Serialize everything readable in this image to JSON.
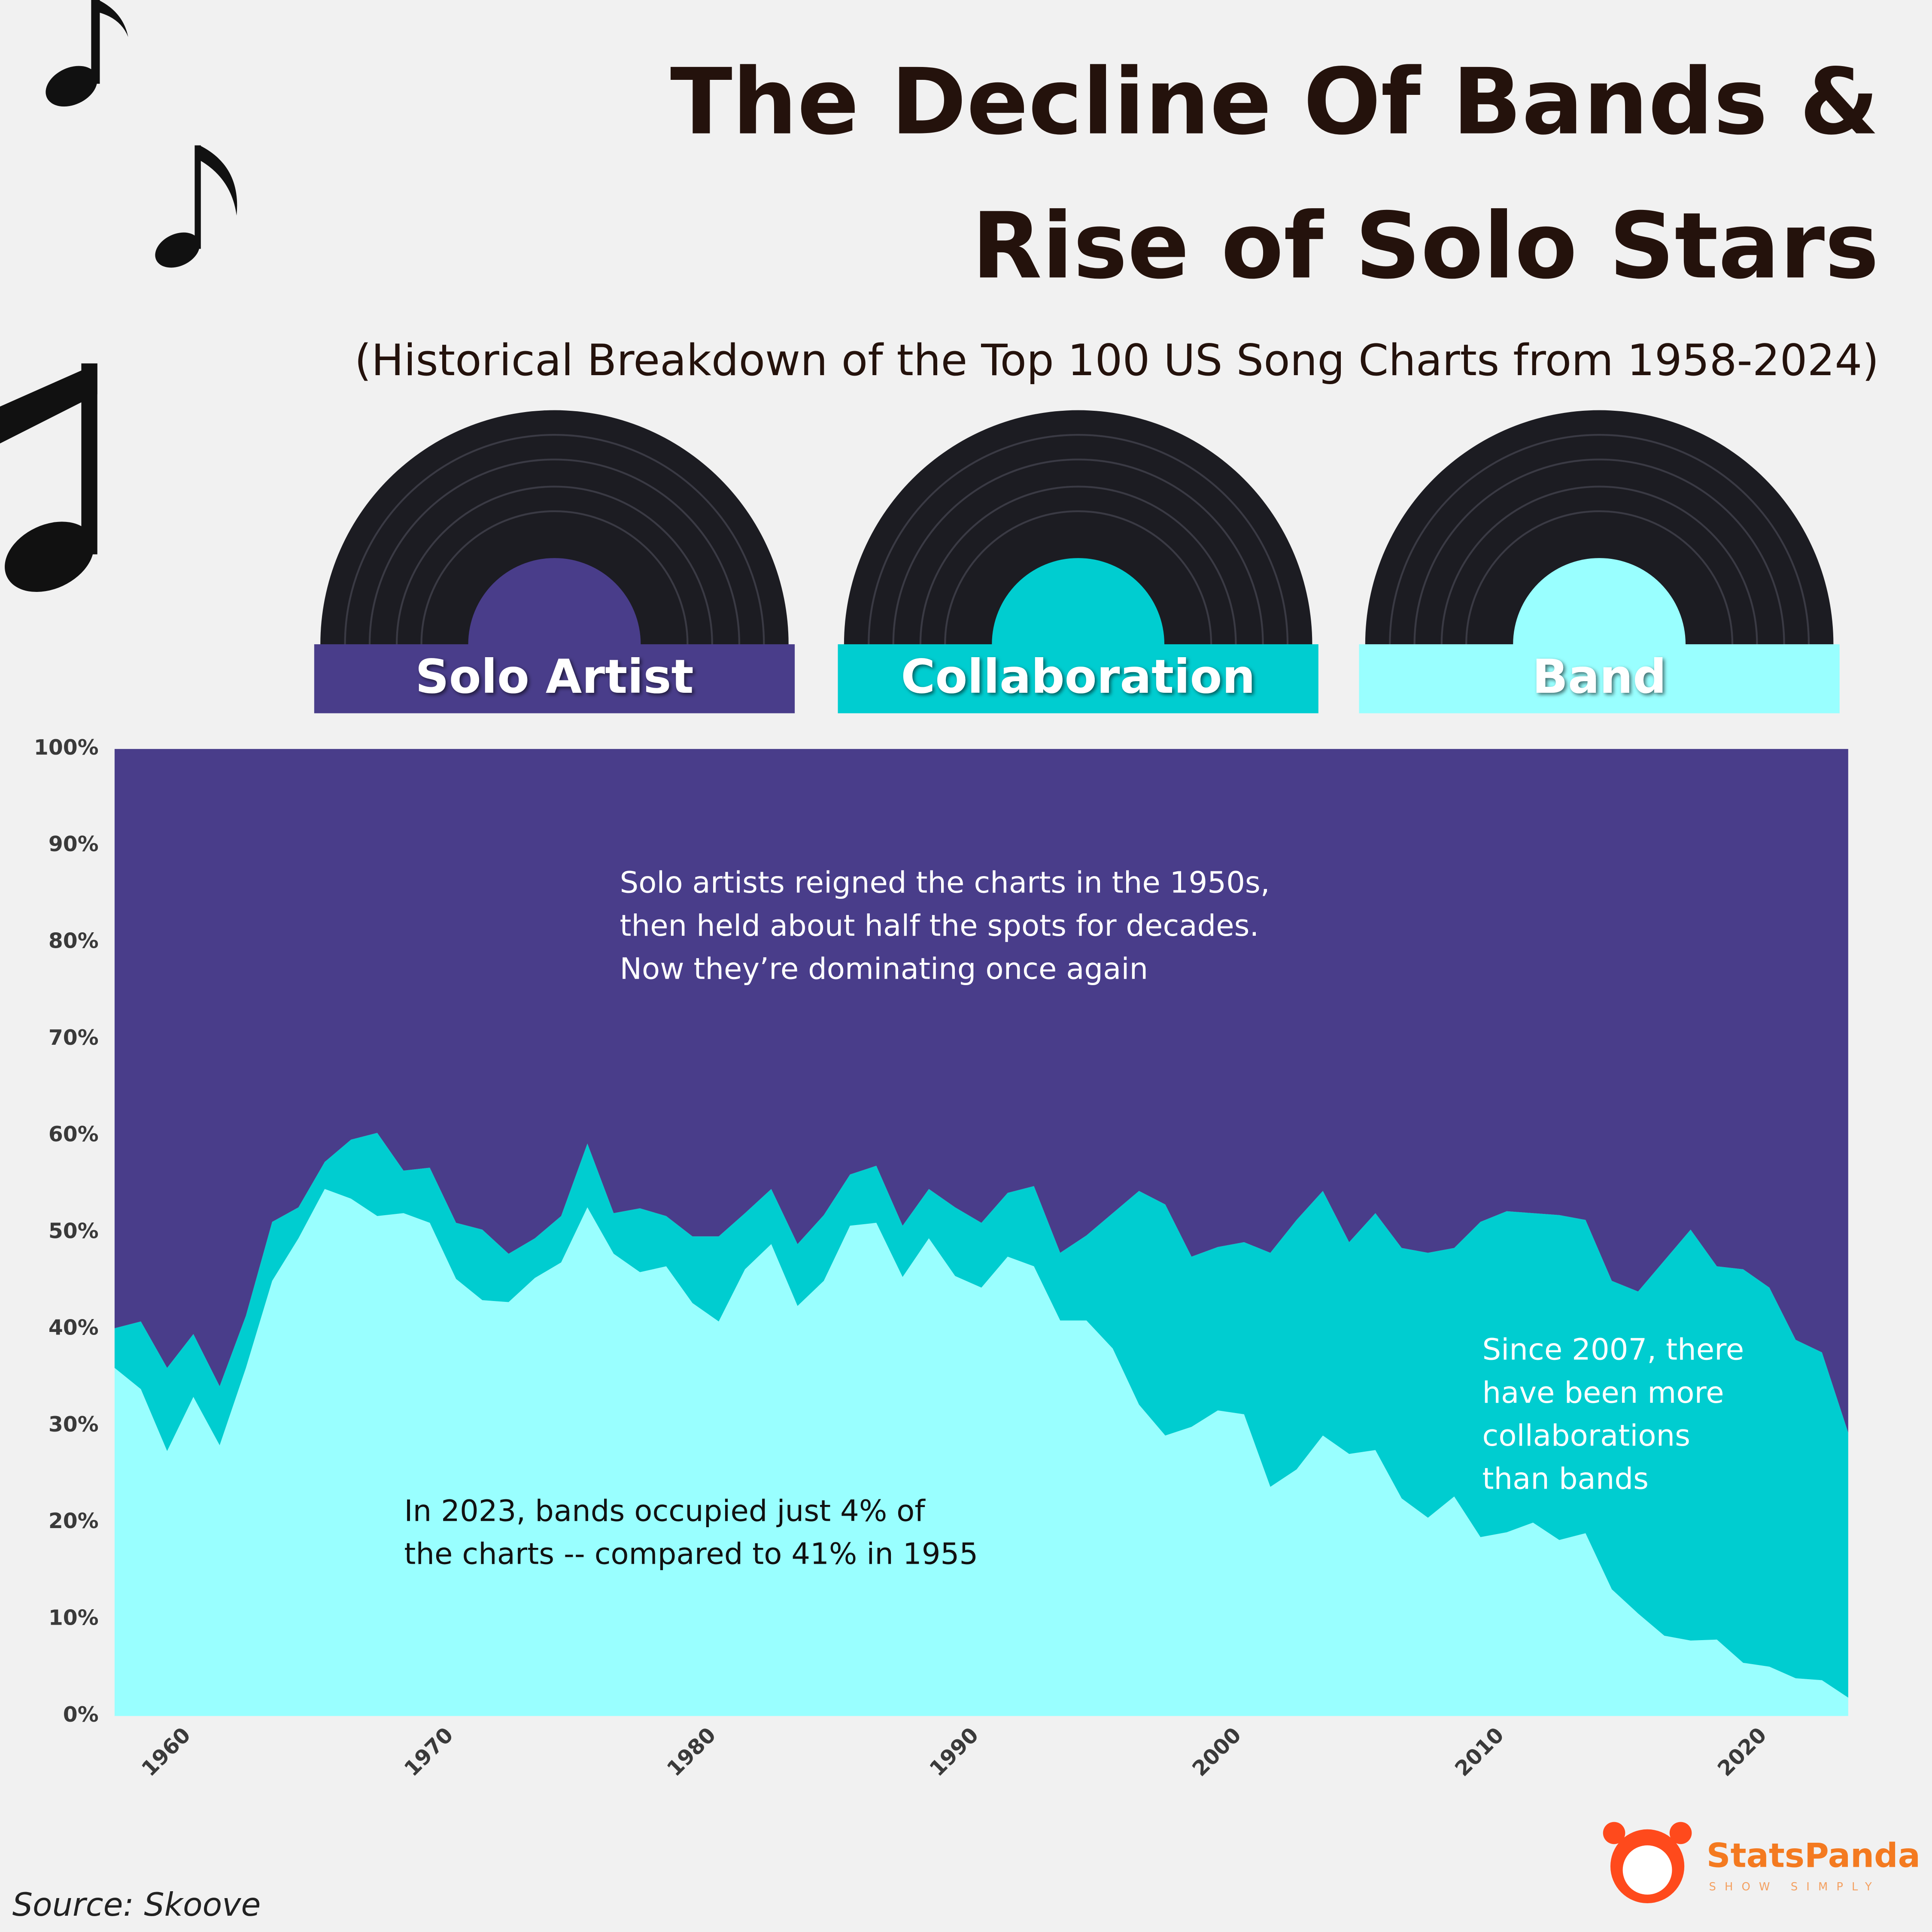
{
  "chart_data": {
    "type": "stacked_area",
    "title": [
      "The Decline Of Bands &",
      "Rise of Solo Stars"
    ],
    "subtitle": "(Historical Breakdown of the Top 100 US Song Charts from 1958-2024)",
    "source": "Source: Skoove",
    "brand": {
      "name": "StatsPanda",
      "tagline": "SHOW SIMPLY"
    },
    "x": [
      1958,
      1959,
      1960,
      1961,
      1962,
      1963,
      1964,
      1965,
      1966,
      1967,
      1968,
      1969,
      1970,
      1971,
      1972,
      1973,
      1974,
      1975,
      1976,
      1977,
      1978,
      1979,
      1980,
      1981,
      1982,
      1983,
      1984,
      1985,
      1986,
      1987,
      1988,
      1989,
      1990,
      1991,
      1992,
      1993,
      1994,
      1995,
      1996,
      1997,
      1998,
      1999,
      2000,
      2001,
      2002,
      2003,
      2004,
      2005,
      2006,
      2007,
      2008,
      2009,
      2010,
      2011,
      2012,
      2013,
      2014,
      2015,
      2016,
      2017,
      2018,
      2019,
      2020,
      2021,
      2022,
      2023,
      2024
    ],
    "series": [
      {
        "name": "Solo Artist",
        "color": "#493d8a",
        "values": [
          59.9,
          59.2,
          64,
          60.5,
          65.9,
          58.6,
          48.9,
          47.4,
          42.7,
          40.4,
          39.7,
          43.6,
          43.3,
          49,
          49.7,
          52.2,
          50.6,
          48.3,
          40.8,
          48,
          47.5,
          48.3,
          50.4,
          50.4,
          48,
          45.5,
          51.2,
          48.2,
          44,
          43.1,
          49.3,
          45.5,
          47.4,
          49,
          45.9,
          45.2,
          52.1,
          50.3,
          48,
          45.7,
          47.1,
          52.5,
          51.5,
          51,
          52.1,
          48.7,
          45.7,
          51,
          48,
          51.6,
          52.1,
          51.6,
          48.9,
          47.8,
          48,
          48.2,
          48.7,
          55,
          56.1,
          52.9,
          49.7,
          53.5,
          53.8,
          55.7,
          61.1,
          62.4,
          70.7
        ]
      },
      {
        "name": "Collaboration",
        "color": "#00cdd0",
        "values": [
          4.1,
          7,
          8.6,
          6.5,
          6.1,
          5.4,
          6.1,
          3.2,
          2.8,
          6.1,
          8.6,
          4.4,
          5.7,
          5.8,
          7.3,
          5,
          4.1,
          4.8,
          6.6,
          4.2,
          6.6,
          5.2,
          6.9,
          8.8,
          5.8,
          5.7,
          6.4,
          6.8,
          5.3,
          5.9,
          5.3,
          5.1,
          7.1,
          6.7,
          6.6,
          8.3,
          7,
          8.8,
          14,
          22.1,
          23.9,
          17.6,
          16.9,
          17.8,
          24.2,
          25.8,
          25.3,
          21.9,
          24.5,
          25.9,
          27.4,
          25.7,
          32.6,
          33.2,
          32,
          33.6,
          32.4,
          31.9,
          33.3,
          38.8,
          42.5,
          38.6,
          40.7,
          39.2,
          35,
          33.9,
          27.4
        ]
      },
      {
        "name": "Band",
        "color": "#99ffff",
        "values": [
          36,
          33.8,
          27.4,
          33,
          28,
          36,
          45,
          49.4,
          54.5,
          53.5,
          51.7,
          52,
          51,
          45.2,
          43,
          42.8,
          45.3,
          46.9,
          52.6,
          47.8,
          45.9,
          46.5,
          42.7,
          40.8,
          46.2,
          48.8,
          42.4,
          45,
          50.7,
          51,
          45.4,
          49.4,
          45.5,
          44.3,
          47.5,
          46.5,
          40.9,
          40.9,
          38,
          32.2,
          29,
          29.9,
          31.6,
          31.2,
          23.7,
          25.5,
          29,
          27.1,
          27.5,
          22.5,
          20.5,
          22.7,
          18.5,
          19,
          20,
          18.2,
          18.9,
          13.1,
          10.6,
          8.3,
          7.8,
          7.9,
          5.5,
          5.1,
          3.9,
          3.7,
          1.9
        ]
      }
    ],
    "xlim": [
      1958,
      2024
    ],
    "xticks": [
      1960,
      1970,
      1980,
      1990,
      2000,
      2010,
      2020
    ],
    "ylim": [
      0,
      100
    ],
    "yticks": [
      {
        "value": 0,
        "label": "0%"
      },
      {
        "value": 10,
        "label": "10%"
      },
      {
        "value": 20,
        "label": "20%"
      },
      {
        "value": 30,
        "label": "30%"
      },
      {
        "value": 40,
        "label": "40%"
      },
      {
        "value": 50,
        "label": "50%"
      },
      {
        "value": 60,
        "label": "60%"
      },
      {
        "value": 70,
        "label": "70%"
      },
      {
        "value": 80,
        "label": "80%"
      },
      {
        "value": 90,
        "label": "90%"
      },
      {
        "value": 100,
        "label": "100%"
      }
    ],
    "annotations": [
      {
        "lines": [
          "Solo artists reigned the charts in the 1950s,",
          "then held about half the spots for decades.",
          "Now they’re dominating once again"
        ],
        "color": "#ffffff"
      },
      {
        "lines": [
          "Since 2007, there",
          "have been more",
          "collaborations",
          "than bands"
        ],
        "color": "#ffffff"
      },
      {
        "lines": [
          "In 2023, bands occupied just 4% of",
          "the charts -- compared to 41% in 1955"
        ],
        "color": "#111111"
      }
    ]
  }
}
